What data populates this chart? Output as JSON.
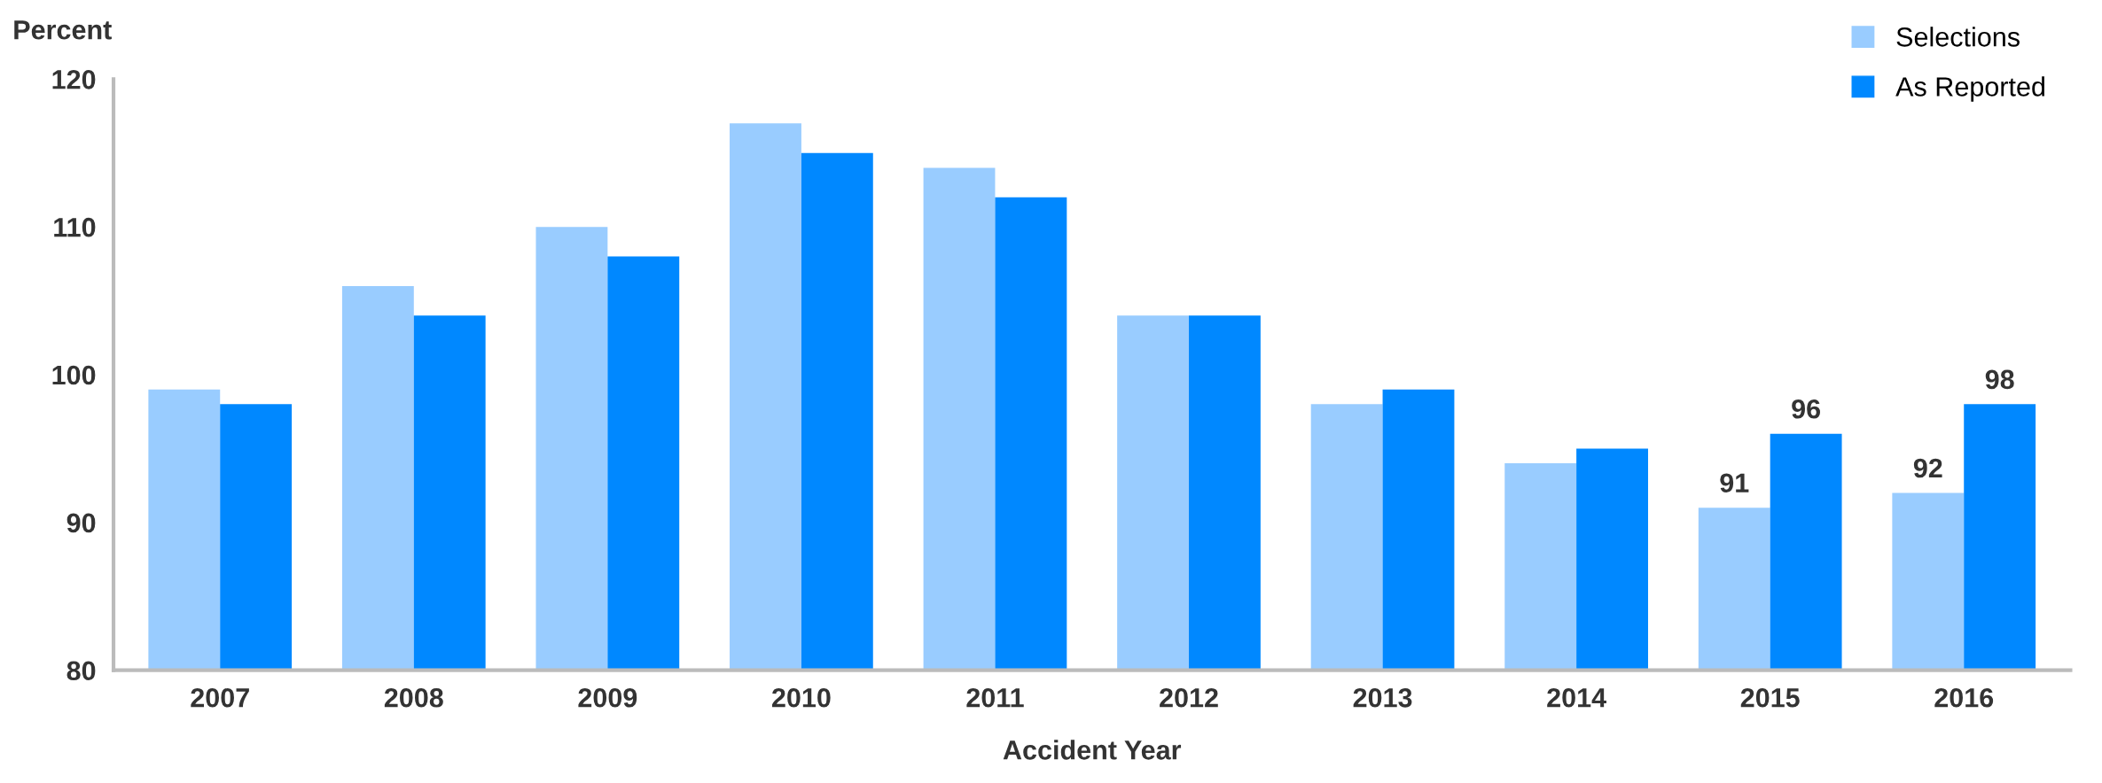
{
  "chart_data": {
    "type": "bar",
    "ylabel": "Percent",
    "xlabel": "Accident Year",
    "categories": [
      "2007",
      "2008",
      "2009",
      "2010",
      "2011",
      "2012",
      "2013",
      "2014",
      "2015",
      "2016"
    ],
    "series": [
      {
        "name": "Selections",
        "color": "#99ccff",
        "values": [
          99,
          106,
          110,
          117,
          114,
          104,
          98,
          94,
          91,
          92
        ],
        "value_labels": [
          null,
          null,
          null,
          null,
          null,
          null,
          null,
          null,
          "91",
          "92"
        ]
      },
      {
        "name": "As Reported",
        "color": "#0088ff",
        "values": [
          98,
          104,
          108,
          115,
          112,
          104,
          99,
          95,
          96,
          98
        ],
        "value_labels": [
          null,
          null,
          null,
          null,
          null,
          null,
          null,
          null,
          "96",
          "98"
        ]
      }
    ],
    "ylim": [
      80,
      120
    ],
    "yticks": [
      80,
      90,
      100,
      110,
      120
    ],
    "grid": false,
    "legend": "top right"
  }
}
